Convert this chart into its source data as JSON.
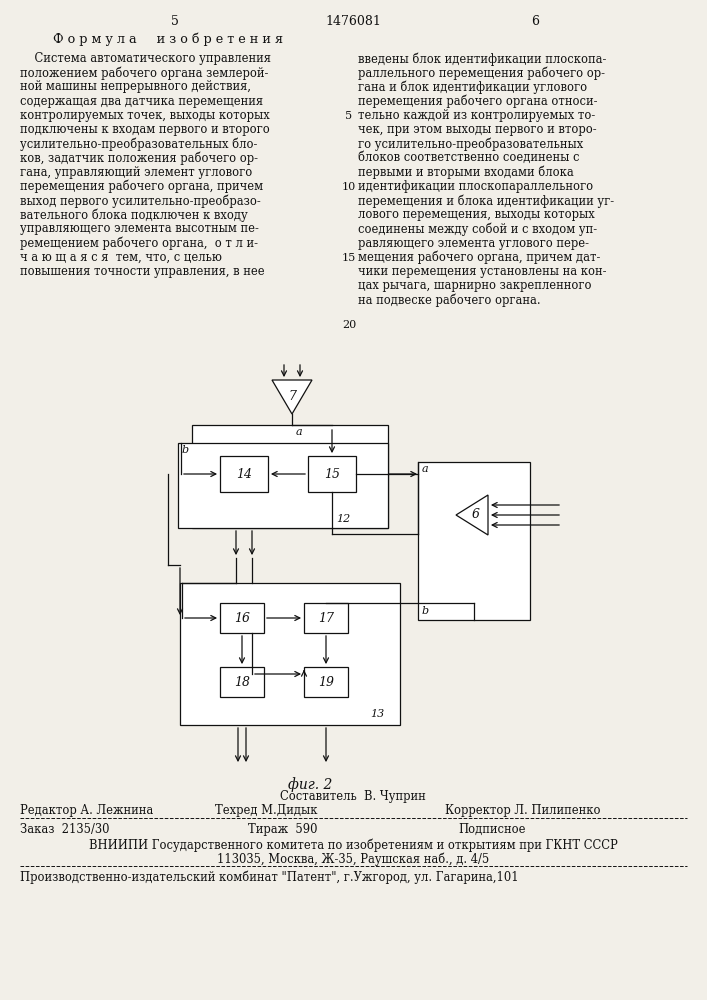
{
  "bg_color": "#f2efe8",
  "text_color": "#111111",
  "line_color": "#111111",
  "page_num_left": "5",
  "page_num_center": "1476081",
  "page_num_right": "6",
  "heading": "Ф о р м у л а     и з о б р е т е н и я",
  "left_col": [
    "    Система автоматического управления",
    "положением рабочего органа землерой-",
    "ной машины непрерывного действия,",
    "содержащая два датчика перемещения",
    "контролируемых точек, выходы которых",
    "подключены к входам первого и второго",
    "усилительно-преобразовательных бло-",
    "ков, задатчик положения рабочего ор-",
    "гана, управляющий элемент углового",
    "перемещения рабочего органа, причем",
    "выход первого усилительно-преобразо-",
    "вательного блока подключен к входу",
    "управляющего элемента высотным пе-",
    "ремещением рабочего органа,  о т л и-",
    "ч а ю щ а я с я  тем, что, с целью",
    "повышения точности управления, в нее"
  ],
  "right_col": [
    "введены блок идентификации плоскопа-",
    "раллельного перемещения рабочего ор-",
    "гана и блок идентификации углового",
    "перемещения рабочего органа относи-",
    "тельно каждой из контролируемых то-",
    "чек, при этом выходы первого и второ-",
    "го усилительно-преобразовательных",
    "блоков соответственно соединены с",
    "первыми и вторыми входами блока",
    "идентификации плоскопараллельного",
    "перемещения и блока идентификации уг-",
    "лового перемещения, выходы которых",
    "соединены между собой и с входом уп-",
    "равляющего элемента углового пере-",
    "мещения рабочего органа, причем дат-",
    "чики перемещения установлены на кон-",
    "цах рычага, шарнирно закрепленного",
    "на подвеске рабочего органа."
  ],
  "fig_label": "фиг. 2",
  "footer_composer": "Составитель  В. Чуприн",
  "footer_editor": "Редактор А. Лежнина",
  "footer_tech": "Техред М.Дидык",
  "footer_corrector": "Корректор Л. Пилипенко",
  "footer_order": "Заказ  2135/30",
  "footer_tirazh": "Тираж  590",
  "footer_podpisnoe": "Подписное",
  "footer_vniiphi": "ВНИИПИ Государственного комитета по изобретениям и открытиям при ГКНТ СССР",
  "footer_addr": "113035, Москва, Ж-35, Раушская наб., д. 4/5",
  "footer_patent": "Производственно-издательский комбинат \"Патент\", г.Ужгород, ул. Гагарина,101"
}
